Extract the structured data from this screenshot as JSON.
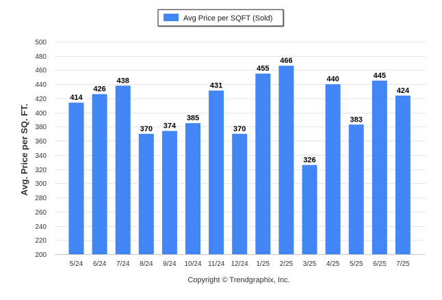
{
  "colors": {
    "bar": "#4285f4",
    "grid": "#e6e6e6",
    "axis_text": "#333333",
    "legend_border": "#1a1a1a",
    "footer_text": "#333333"
  },
  "legend": {
    "label": "Avg Price per SQFT (Sold)"
  },
  "footer": {
    "copyright": "Copyright © Trendgraphix, Inc."
  },
  "chart_data": {
    "type": "bar",
    "title": "",
    "xlabel": "",
    "ylabel": "Avg. Price per SQ. FT.",
    "ylim": [
      200,
      500
    ],
    "yticks": [
      200,
      220,
      240,
      260,
      280,
      300,
      320,
      340,
      360,
      380,
      400,
      420,
      440,
      460,
      480,
      500
    ],
    "grid": true,
    "legend_position": "top-center",
    "categories": [
      "5/24",
      "6/24",
      "7/24",
      "8/24",
      "9/24",
      "10/24",
      "11/24",
      "12/24",
      "1/25",
      "2/25",
      "3/25",
      "4/25",
      "5/25",
      "6/25",
      "7/25"
    ],
    "series": [
      {
        "name": "Avg Price per SQFT (Sold)",
        "values": [
          414,
          426,
          438,
          370,
          374,
          385,
          431,
          370,
          455,
          466,
          326,
          440,
          383,
          445,
          424
        ],
        "data_labels": [
          "414",
          "426",
          "438",
          "370",
          "374",
          "385",
          "431",
          "370",
          "455",
          "466",
          "326",
          "440",
          "383",
          "445",
          "424"
        ]
      }
    ]
  }
}
